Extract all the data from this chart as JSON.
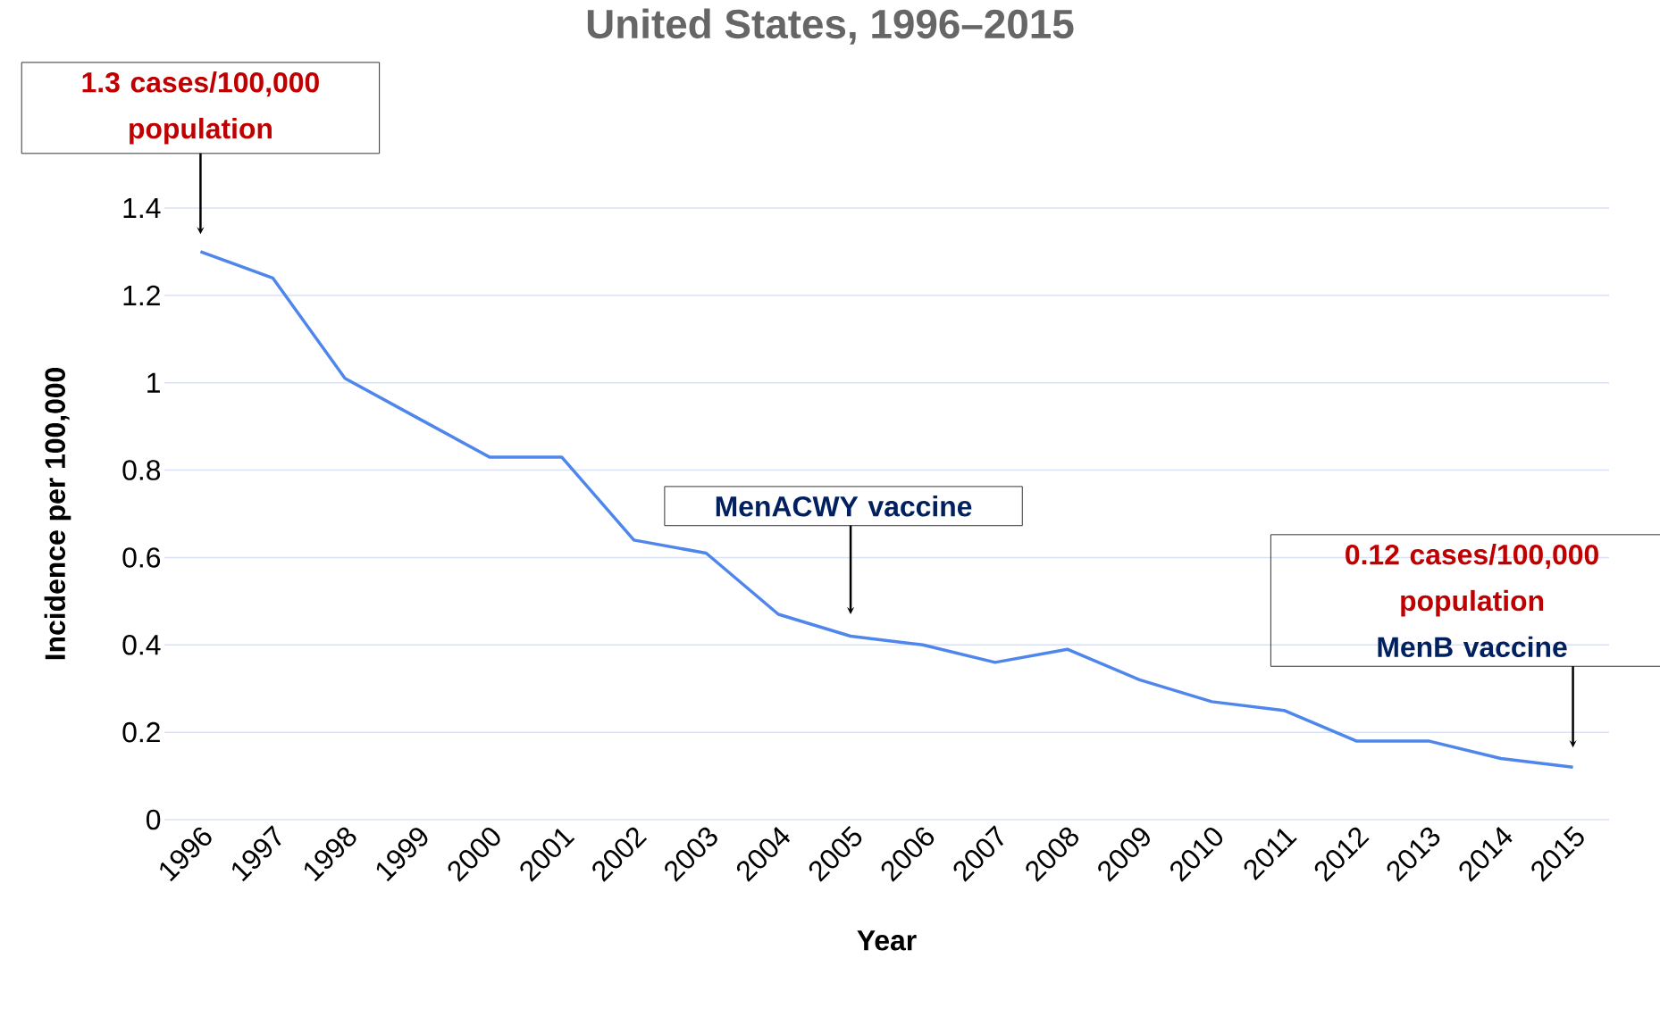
{
  "chart_data": {
    "type": "line",
    "title": "United States, 1996–2015",
    "xlabel": "Year",
    "ylabel": "Incidence per 100,000",
    "categories": [
      "1996",
      "1997",
      "1998",
      "1999",
      "2000",
      "2001",
      "2002",
      "2003",
      "2004",
      "2005",
      "2006",
      "2007",
      "2008",
      "2009",
      "2010",
      "2011",
      "2012",
      "2013",
      "2014",
      "2015"
    ],
    "series": [
      {
        "color": "#4f86ec",
        "values": [
          1.3,
          1.24,
          1.01,
          0.92,
          0.83,
          0.83,
          0.64,
          0.61,
          0.47,
          0.42,
          0.4,
          0.36,
          0.39,
          0.32,
          0.27,
          0.25,
          0.18,
          0.18,
          0.14,
          0.12
        ]
      }
    ],
    "ylim": [
      0,
      1.4
    ],
    "yticks": [
      0,
      0.2,
      0.4,
      0.6,
      0.8,
      1,
      1.2,
      1.4
    ],
    "grid": "y",
    "marker": "none",
    "line_style": "solid",
    "annotations": [
      "1.3 cases/100,000 population",
      "MenACWY vaccine",
      "0.12 cases/100,000 population",
      "MenB vaccine"
    ]
  }
}
